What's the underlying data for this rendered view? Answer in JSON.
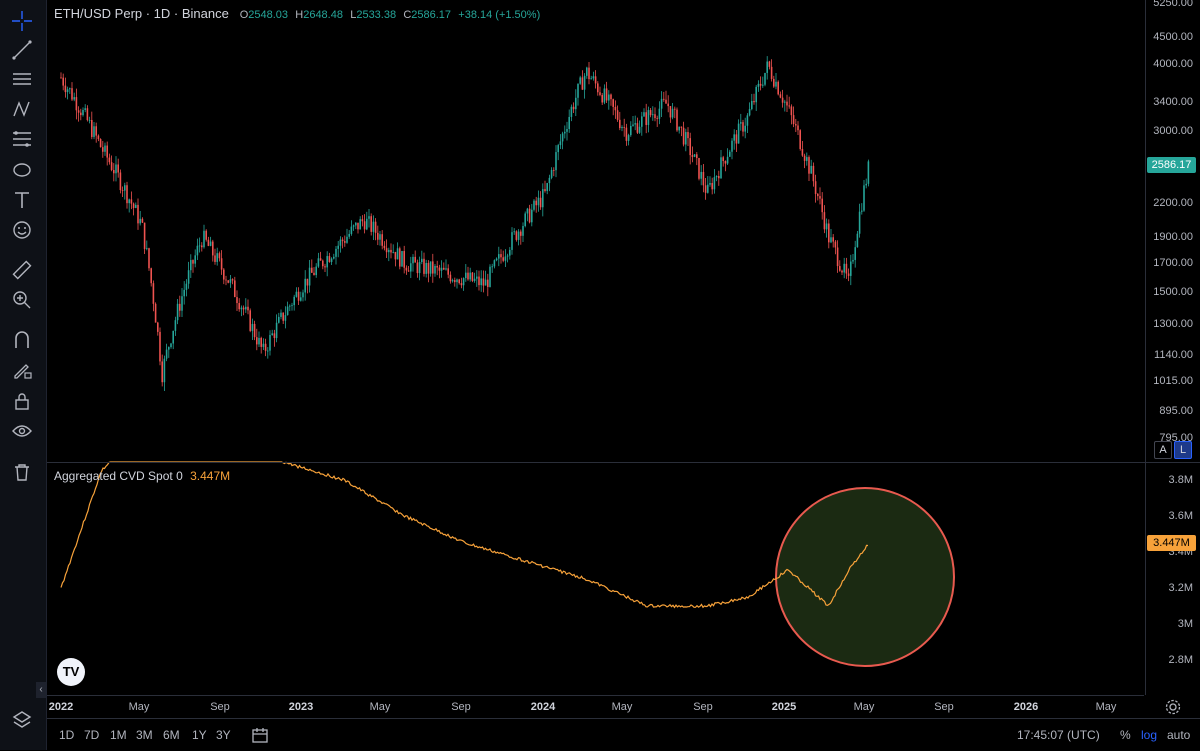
{
  "legend": {
    "symbol": "ETH/USD Perp · 1D · Binance",
    "o_label": "O",
    "o_value": "2548.03",
    "h_label": "H",
    "h_value": "2648.48",
    "l_label": "L",
    "l_value": "2533.38",
    "c_label": "C",
    "c_value": "2586.17",
    "change": "+38.14 (+1.50%)"
  },
  "cvd": {
    "label": "Aggregated CVD Spot 0",
    "value": "3.447M"
  },
  "price_axis": [
    "5250.00",
    "4500.00",
    "4000.00",
    "3400.00",
    "3000.00",
    "2200.00",
    "1900.00",
    "1700.00",
    "1500.00",
    "1300.00",
    "1140.00",
    "1015.00",
    "895.00",
    "795.00"
  ],
  "cvd_axis": [
    "3.8M",
    "3.6M",
    "3.4M",
    "3.2M",
    "3M",
    "2.8M"
  ],
  "current_price": "2586.17",
  "current_cvd": "3.447M",
  "scale_buttons": {
    "auto_label": "A",
    "log_label": "L"
  },
  "time_axis": [
    {
      "label": "2022",
      "bold": true
    },
    {
      "label": "May"
    },
    {
      "label": "Sep"
    },
    {
      "label": "2023",
      "bold": true
    },
    {
      "label": "May"
    },
    {
      "label": "Sep"
    },
    {
      "label": "2024",
      "bold": true
    },
    {
      "label": "May"
    },
    {
      "label": "Sep"
    },
    {
      "label": "2025",
      "bold": true
    },
    {
      "label": "May"
    },
    {
      "label": "Sep"
    },
    {
      "label": "2026",
      "bold": true
    },
    {
      "label": "May"
    }
  ],
  "bottom_bar": {
    "ranges": [
      "1D",
      "7D",
      "1M",
      "3M",
      "6M",
      "1Y",
      "3Y"
    ],
    "clock": "17:45:07 (UTC)",
    "percent": "%",
    "log": "log",
    "auto": "auto"
  },
  "logo_text": "TV",
  "colors": {
    "up": "#26a69a",
    "down": "#ef5350",
    "cvd_line": "#f7a23a",
    "highlight_fill": "#1b2a12",
    "highlight_stroke": "#e85a4f"
  },
  "chart_data": [
    {
      "type": "candlestick",
      "title": "ETH/USD Perp · 1D · Binance",
      "scale": "log",
      "ylim": [
        795,
        5250
      ],
      "x": [
        "2022-01",
        "2022-03",
        "2022-05",
        "2022-06",
        "2022-08",
        "2022-11",
        "2023-01",
        "2023-04",
        "2023-06",
        "2023-10",
        "2024-01",
        "2024-03",
        "2024-05",
        "2024-07",
        "2024-09",
        "2024-11",
        "2024-12",
        "2025-01",
        "2025-03",
        "2025-04",
        "2025-05"
      ],
      "close": [
        3800,
        2800,
        2000,
        1050,
        1900,
        1150,
        1550,
        2050,
        1700,
        1550,
        2300,
        3900,
        3000,
        3400,
        2300,
        3200,
        4000,
        3300,
        1900,
        1550,
        2586
      ]
    },
    {
      "type": "line",
      "title": "Aggregated CVD Spot 0",
      "ylim": [
        2.7,
        3.9
      ],
      "x": [
        "2022-01",
        "2022-03",
        "2022-06",
        "2022-12",
        "2023-03",
        "2023-06",
        "2023-09",
        "2023-12",
        "2024-03",
        "2024-06",
        "2024-09",
        "2024-11",
        "2025-01",
        "2025-03",
        "2025-04",
        "2025-05"
      ],
      "values": [
        3.2,
        3.85,
        4.2,
        3.9,
        3.8,
        3.6,
        3.45,
        3.35,
        3.25,
        3.1,
        3.1,
        3.15,
        3.3,
        3.1,
        3.3,
        3.447
      ]
    }
  ]
}
